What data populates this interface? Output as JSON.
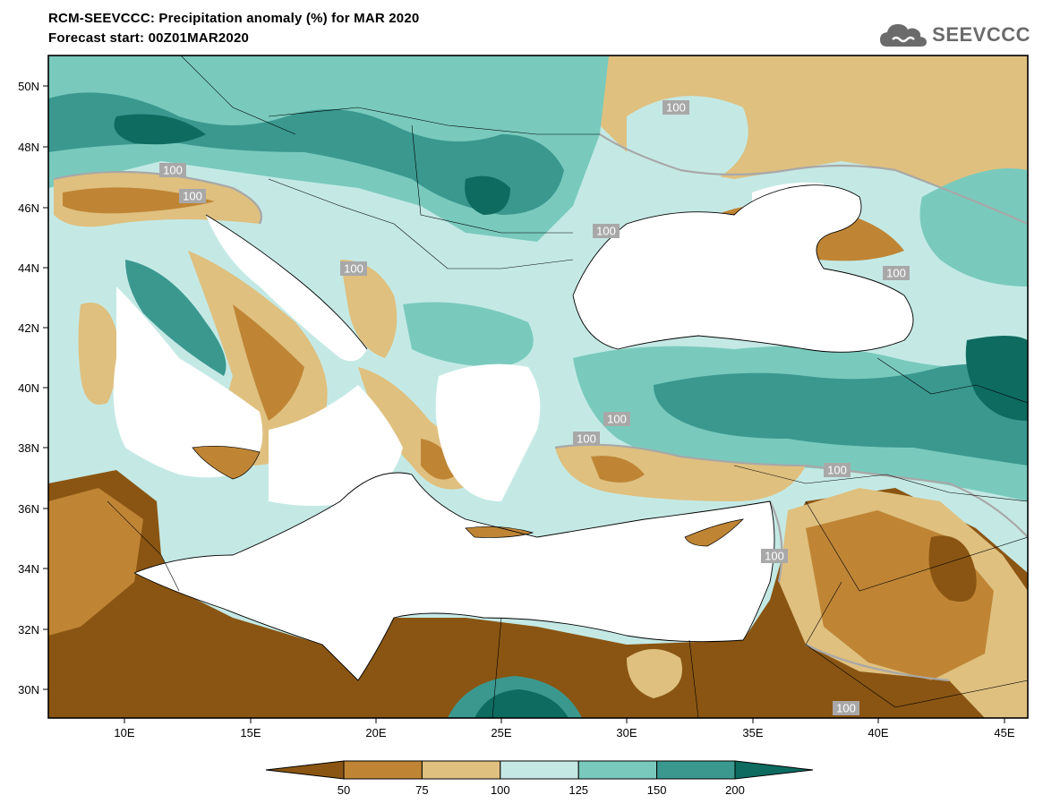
{
  "header": {
    "title_line1": "RCM-SEEVCCC: Precipitation anomaly (%) for MAR 2020",
    "title_line2": "Forecast start: 00Z01MAR2020"
  },
  "logo": {
    "text": "SEEVCCC",
    "icon": "cloud-logo-icon"
  },
  "map": {
    "type": "filled-contour map",
    "lat_ticks": [
      "50N",
      "48N",
      "46N",
      "44N",
      "42N",
      "40N",
      "38N",
      "36N",
      "34N",
      "32N",
      "30N"
    ],
    "lon_ticks": [
      "10E",
      "15E",
      "20E",
      "25E",
      "30E",
      "35E",
      "40E",
      "45E"
    ],
    "contour_labels": [
      "100",
      "100",
      "100",
      "100",
      "100",
      "100",
      "100",
      "100",
      "100",
      "100",
      "100"
    ]
  },
  "colorbar": {
    "labels": [
      "50",
      "75",
      "100",
      "125",
      "150",
      "200"
    ],
    "colors": [
      "#8a5512",
      "#bf8535",
      "#dfc07f",
      "#c4e9e5",
      "#79cabd",
      "#3a988f",
      "#0d6b60"
    ]
  }
}
